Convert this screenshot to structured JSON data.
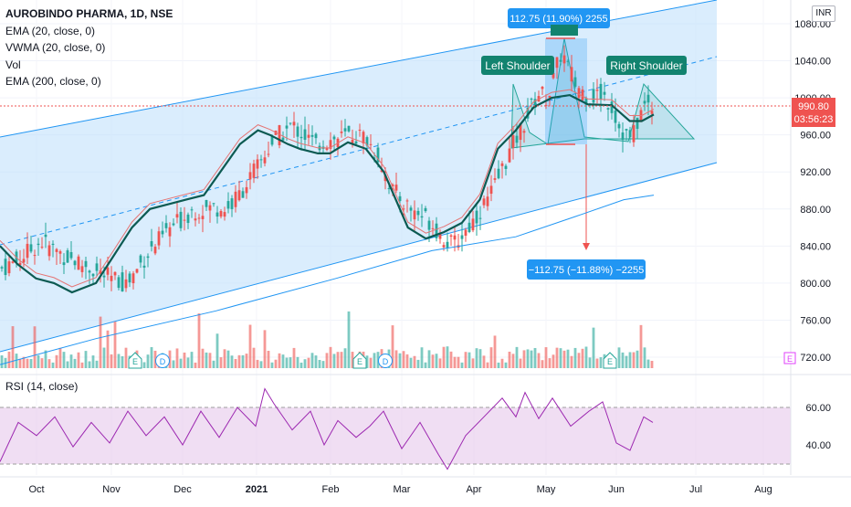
{
  "legend": {
    "symbol": "AUROBINDO PHARMA, 1D, NSE",
    "ema20": "EMA (20, close, 0)",
    "vwma": "VWMA (20, close, 0)",
    "vol": "Vol",
    "ema200": "EMA (200, close, 0)"
  },
  "rsi_legend": "RSI (14, close)",
  "currency": "INR",
  "price_axis_labels": [
    "1080.00",
    "1040.00",
    "1000.00",
    "960.00",
    "920.00",
    "880.00",
    "840.00",
    "800.00",
    "760.00",
    "720.00"
  ],
  "last_price": "990.80",
  "countdown": "03:56:23",
  "rsi_axis_labels": [
    "60.00",
    "40.00"
  ],
  "time_labels": [
    "Oct",
    "Nov",
    "Dec",
    "2021",
    "Feb",
    "Mar",
    "Apr",
    "May",
    "Jun",
    "Jul",
    "Aug"
  ],
  "annotations": {
    "top_measure": "112.75 (11.90%) 2255",
    "bottom_measure": "−112.75 (−11.88%) −2255",
    "left_shoulder": "Left Shoulder",
    "right_shoulder": "Right Shoulder"
  },
  "event_markers": [
    "E",
    "D",
    "E",
    "D",
    "E",
    "E"
  ],
  "colors": {
    "up": "#26a69a",
    "down": "#ef5350",
    "ema20": "#0c5a52",
    "vwma": "#e57373",
    "ema200": "#2196f3",
    "channel": "#bbdefb",
    "rsi": "#9c27b0",
    "label_bg": "#2196f3",
    "shoulder_bg": "#12836f"
  },
  "chart_data": {
    "type": "candlestick",
    "title": "AUROBINDO PHARMA, 1D, NSE",
    "y_axis_range": [
      710,
      1090
    ],
    "rsi_axis_range": [
      20,
      80
    ],
    "current_price": 990.8,
    "ema20_path": [
      [
        820,
        840
      ],
      [
        835,
        820
      ],
      [
        850,
        805
      ],
      [
        865,
        800
      ],
      [
        880,
        790
      ],
      [
        900,
        800
      ],
      [
        915,
        830
      ],
      [
        930,
        860
      ],
      [
        945,
        880
      ],
      [
        960,
        885
      ],
      [
        975,
        890
      ],
      [
        990,
        895
      ],
      [
        1020,
        950
      ],
      [
        1035,
        965
      ],
      [
        1045,
        960
      ],
      [
        1060,
        950
      ],
      [
        1070,
        945
      ],
      [
        1085,
        940
      ],
      [
        1095,
        940
      ],
      [
        1110,
        952
      ],
      [
        1125,
        945
      ],
      [
        1140,
        920
      ],
      [
        1150,
        890
      ],
      [
        1160,
        860
      ],
      [
        1175,
        848
      ],
      [
        1190,
        855
      ],
      [
        1205,
        865
      ],
      [
        1220,
        890
      ],
      [
        1235,
        945
      ],
      [
        1250,
        965
      ],
      [
        1265,
        990
      ],
      [
        1280,
        1000
      ],
      [
        1295,
        1003
      ],
      [
        1310,
        993
      ],
      [
        1330,
        992
      ],
      [
        1345,
        975
      ],
      [
        1355,
        975
      ],
      [
        1365,
        982
      ]
    ],
    "ema200_path": [
      [
        820,
        712
      ],
      [
        900,
        740
      ],
      [
        1000,
        770
      ],
      [
        1100,
        805
      ],
      [
        1180,
        835
      ],
      [
        1250,
        850
      ],
      [
        1300,
        872
      ],
      [
        1340,
        890
      ]
    ],
    "rsi_path": [
      [
        0,
        31
      ],
      [
        20,
        52
      ],
      [
        40,
        45
      ],
      [
        60,
        55
      ],
      [
        80,
        39
      ],
      [
        100,
        52
      ],
      [
        120,
        41
      ],
      [
        140,
        58
      ],
      [
        160,
        45
      ],
      [
        180,
        55
      ],
      [
        200,
        40
      ],
      [
        220,
        58
      ],
      [
        240,
        44
      ],
      [
        260,
        60
      ],
      [
        280,
        50
      ],
      [
        290,
        70
      ],
      [
        300,
        62
      ],
      [
        320,
        48
      ],
      [
        340,
        58
      ],
      [
        355,
        40
      ],
      [
        370,
        53
      ],
      [
        390,
        44
      ],
      [
        405,
        50
      ],
      [
        420,
        58
      ],
      [
        440,
        38
      ],
      [
        460,
        52
      ],
      [
        480,
        35
      ],
      [
        490,
        27
      ],
      [
        510,
        45
      ],
      [
        530,
        55
      ],
      [
        550,
        65
      ],
      [
        565,
        55
      ],
      [
        575,
        68
      ],
      [
        590,
        54
      ],
      [
        605,
        65
      ],
      [
        625,
        50
      ],
      [
        645,
        58
      ],
      [
        660,
        63
      ],
      [
        675,
        41
      ],
      [
        690,
        37
      ],
      [
        705,
        55
      ],
      [
        715,
        52
      ]
    ],
    "volume_relative": "spikes near early Feb, late Mar and mid Jun",
    "annotation_levels": {
      "neckline": 962,
      "pattern_top": 1062
    }
  }
}
